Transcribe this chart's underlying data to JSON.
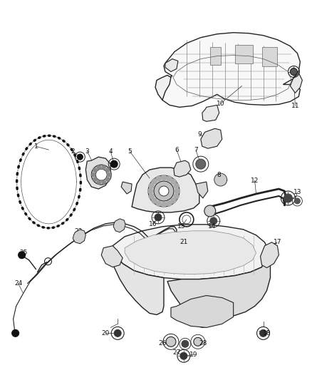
{
  "bg_color": "#ffffff",
  "line_color": "#222222",
  "label_color": "#111111",
  "figsize": [
    4.38,
    5.33
  ],
  "dpi": 100,
  "label_fs": 6.5,
  "lw_main": 1.0,
  "lw_thin": 0.6
}
